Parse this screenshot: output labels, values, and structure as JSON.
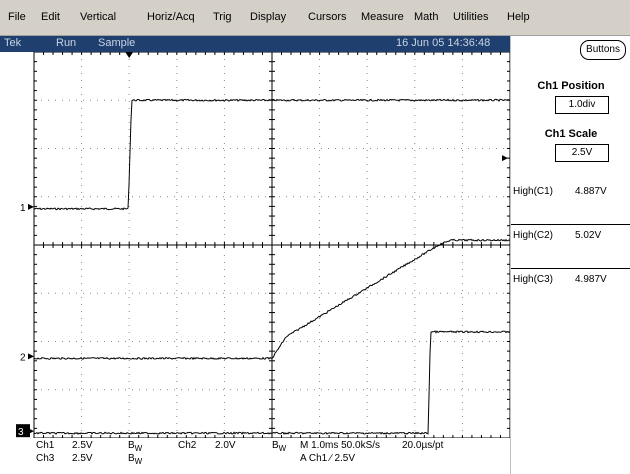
{
  "menu": [
    "File",
    "Edit",
    "Vertical",
    "Horiz/Acq",
    "Trig",
    "Display",
    "Cursors",
    "Measure",
    "Math",
    "Utilities",
    "Help"
  ],
  "status": {
    "brand": "Tek",
    "run": "Run",
    "mode": "Sample",
    "datetime": "16 Jun 05 14:36:48"
  },
  "channels": [
    {
      "marker": "1",
      "color": "#000000"
    },
    {
      "marker": "2",
      "color": "#000000"
    },
    {
      "marker": "3",
      "color": "#000000"
    }
  ],
  "readout": {
    "ch1": "Ch1",
    "ch1_scale": "2.5V",
    "bw1": "B",
    "bw1_sub": "W",
    "ch2": "Ch2",
    "ch2_scale": "2.0V",
    "bw2": "B",
    "bw2_sub": "W",
    "ch3": "Ch3",
    "ch3_scale": "2.5V",
    "bw3": "B",
    "bw3_sub": "W",
    "timebase": "M 1.0ms 50.0kS/s",
    "resolution": "20.0µs/pt",
    "trigger": "A  Ch1  ∕  2.5V"
  },
  "panel": {
    "buttons_label": "Buttons",
    "position_title": "Ch1 Position",
    "position_value": "1.0div",
    "scale_title": "Ch1 Scale",
    "scale_value": "2.5V",
    "measurements": [
      {
        "label": "High(C1)",
        "value": "4.887V"
      },
      {
        "label": "High(C2)",
        "value": "5.02V"
      },
      {
        "label": "High(C3)",
        "value": "4.987V"
      }
    ]
  }
}
